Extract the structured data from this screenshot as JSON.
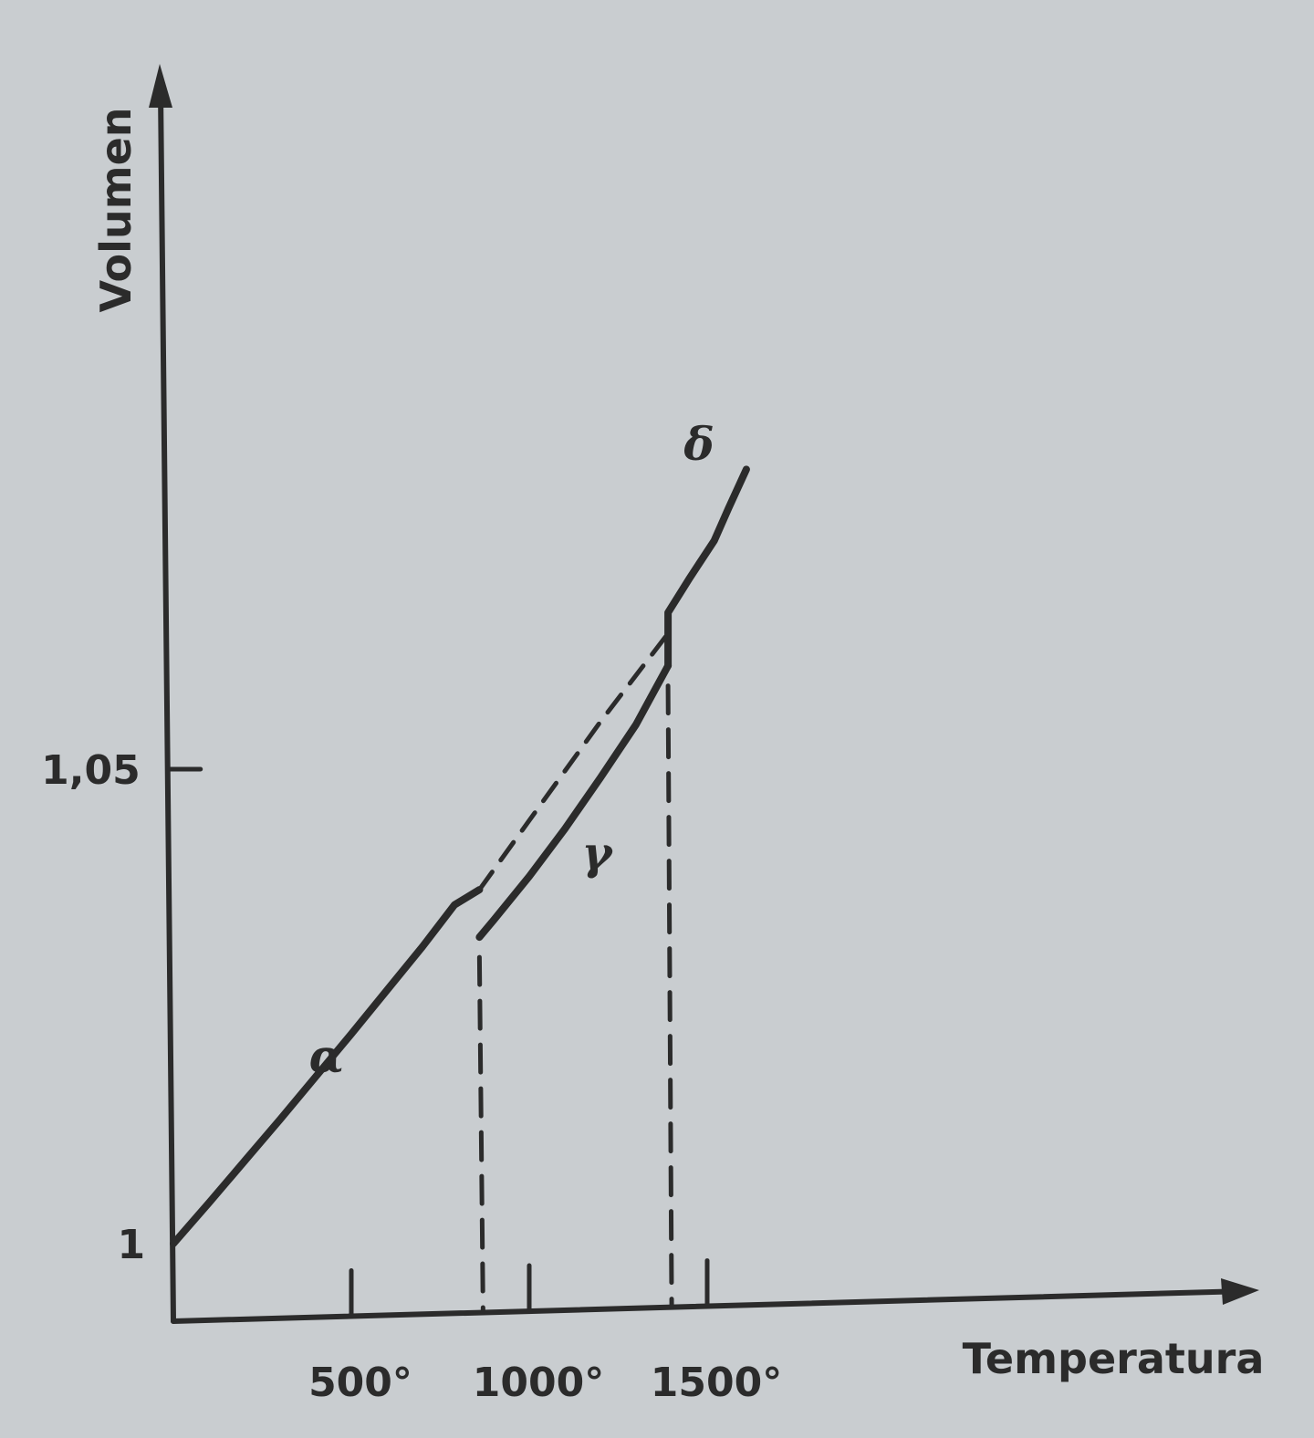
{
  "chart_data": {
    "type": "line",
    "title": "",
    "xlabel": "Temperatura",
    "ylabel": "Volumen",
    "x_ticks": [
      {
        "value": 500,
        "label": "500°"
      },
      {
        "value": 1000,
        "label": "1000°"
      },
      {
        "value": 1500,
        "label": "1500°"
      }
    ],
    "y_ticks": [
      {
        "value": 1.0,
        "label": "1"
      },
      {
        "value": 1.05,
        "label": "1,05"
      }
    ],
    "xlim": [
      0,
      1700
    ],
    "ylim": [
      0.988,
      1.084
    ],
    "grid": false,
    "series": [
      {
        "name": "α",
        "style": "solid",
        "x": [
          0,
          100,
          200,
          300,
          400,
          500,
          600,
          700,
          790,
          860
        ],
        "y": [
          1.0,
          1.0043,
          1.0087,
          1.0131,
          1.0176,
          1.0221,
          1.0267,
          1.0313,
          1.0357,
          1.0373
        ]
      },
      {
        "name": "γ",
        "style": "solid",
        "x": [
          860,
          900,
          1000,
          1100,
          1200,
          1300,
          1390
        ],
        "y": [
          1.0323,
          1.0341,
          1.0387,
          1.0437,
          1.0491,
          1.0547,
          1.0609
        ]
      },
      {
        "name": "δ",
        "style": "solid",
        "x": [
          1390,
          1390,
          1450,
          1520,
          1560,
          1610
        ],
        "y": [
          1.0609,
          1.0665,
          1.0701,
          1.0741,
          1.0775,
          1.0816
        ]
      },
      {
        "name": "",
        "style": "dashed",
        "x": [
          860,
          1000,
          1200,
          1390
        ],
        "y": [
          1.0373,
          1.0446,
          1.055,
          1.0643
        ]
      }
    ],
    "vlines": [
      {
        "x": 860,
        "from": 1.0323,
        "style": "dashed"
      },
      {
        "x": 1390,
        "from": 1.0609,
        "style": "dashed"
      }
    ]
  }
}
